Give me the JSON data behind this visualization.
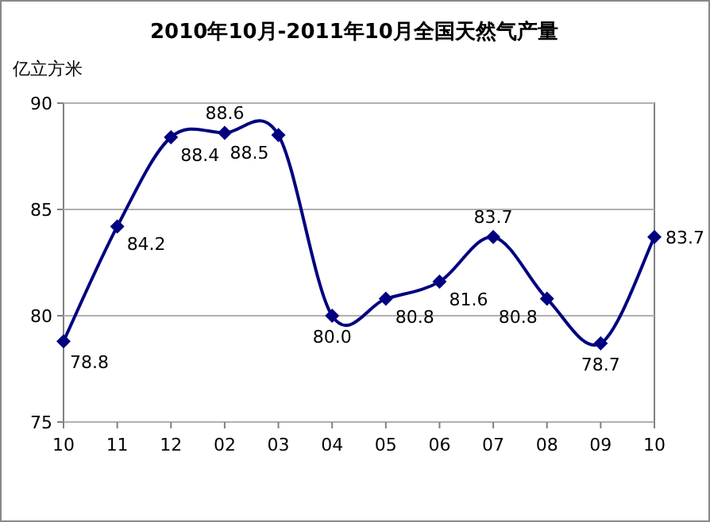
{
  "chart_data": {
    "type": "line",
    "title": "2010年10月-2011年10月全国天然气产量",
    "ylabel": "亿立方米",
    "categories": [
      "10",
      "11",
      "12",
      "02",
      "03",
      "04",
      "05",
      "06",
      "07",
      "08",
      "09",
      "10"
    ],
    "series": [
      {
        "color": "#000080",
        "values": [
          78.8,
          84.2,
          88.4,
          88.6,
          88.5,
          80.0,
          80.8,
          81.6,
          83.7,
          80.8,
          78.7,
          83.7
        ],
        "value_labels": [
          "78.8",
          "84.2",
          "88.4",
          "88.6",
          "88.5",
          "80.0",
          "80.8",
          "81.6",
          "83.7",
          "80.8",
          "78.7",
          "83.7"
        ]
      }
    ],
    "ylim": [
      75,
      90
    ],
    "yticks": [
      75,
      80,
      85,
      90
    ],
    "grid": "y",
    "marker": "diamond",
    "line_style": "solid"
  }
}
